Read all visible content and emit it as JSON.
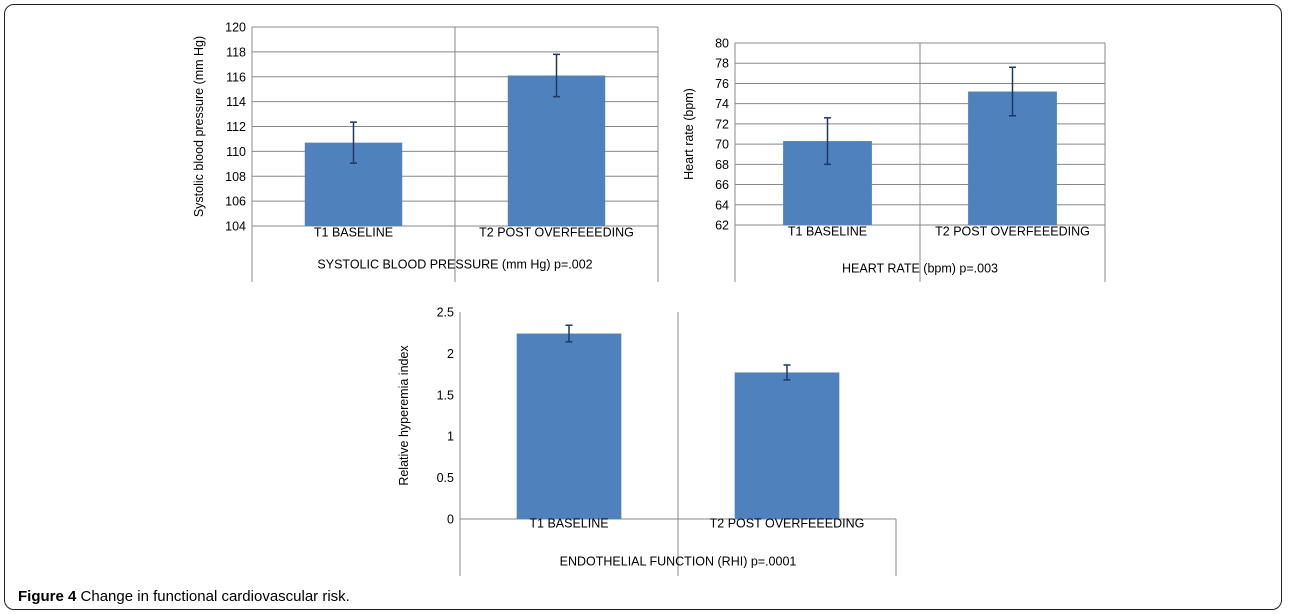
{
  "caption": {
    "label": "Figure 4",
    "text": "Change in functional cardiovascular risk."
  },
  "colors": {
    "bar": "#4F81BD",
    "error_bar": "#1F3864",
    "grid": "#888888",
    "axis": "#888888"
  },
  "chart_data": [
    {
      "type": "bar",
      "categories": [
        "T1 BASELINE",
        "T2 POST OVERFEEEDING"
      ],
      "values": [
        110.7,
        116.1
      ],
      "errors": [
        1.65,
        1.7
      ],
      "title": "SYSTOLIC BLOOD PRESSURE (mm Hg) p=.002",
      "ylabel": "Systolic blood pressure (mm Hg)",
      "xlabel": "",
      "ylim": [
        104,
        120
      ],
      "yticks": [
        104,
        106,
        108,
        110,
        112,
        114,
        116,
        118,
        120
      ],
      "ytick_labels": [
        "104",
        "106",
        "108",
        "110",
        "112",
        "114",
        "116",
        "118",
        "120"
      ],
      "grid": true,
      "legend": "none"
    },
    {
      "type": "bar",
      "categories": [
        "T1 BASELINE",
        "T2 POST OVERFEEEDING"
      ],
      "values": [
        70.3,
        75.2
      ],
      "errors": [
        2.3,
        2.4
      ],
      "title": "HEART RATE (bpm) p=.003",
      "ylabel": "Heart rate (bpm)",
      "xlabel": "",
      "ylim": [
        62,
        80
      ],
      "yticks": [
        62,
        64,
        66,
        68,
        70,
        72,
        74,
        76,
        78,
        80
      ],
      "ytick_labels": [
        "62",
        "64",
        "66",
        "68",
        "70",
        "72",
        "74",
        "76",
        "78",
        "80"
      ],
      "grid": true,
      "legend": "none"
    },
    {
      "type": "bar",
      "categories": [
        "T1 BASELINE",
        "T2 POST OVERFEEEDING"
      ],
      "values": [
        2.24,
        1.77
      ],
      "errors": [
        0.1,
        0.09
      ],
      "title": "ENDOTHELIAL FUNCTION (RHI) p=.0001",
      "ylabel": "Relative hyperemia index",
      "xlabel": "",
      "ylim": [
        0,
        2.5
      ],
      "yticks": [
        0,
        0.5,
        1,
        1.5,
        2,
        2.5
      ],
      "ytick_labels": [
        "0",
        "0.5",
        "1",
        "1.5",
        "2",
        "2.5"
      ],
      "grid": false,
      "legend": "none"
    }
  ]
}
